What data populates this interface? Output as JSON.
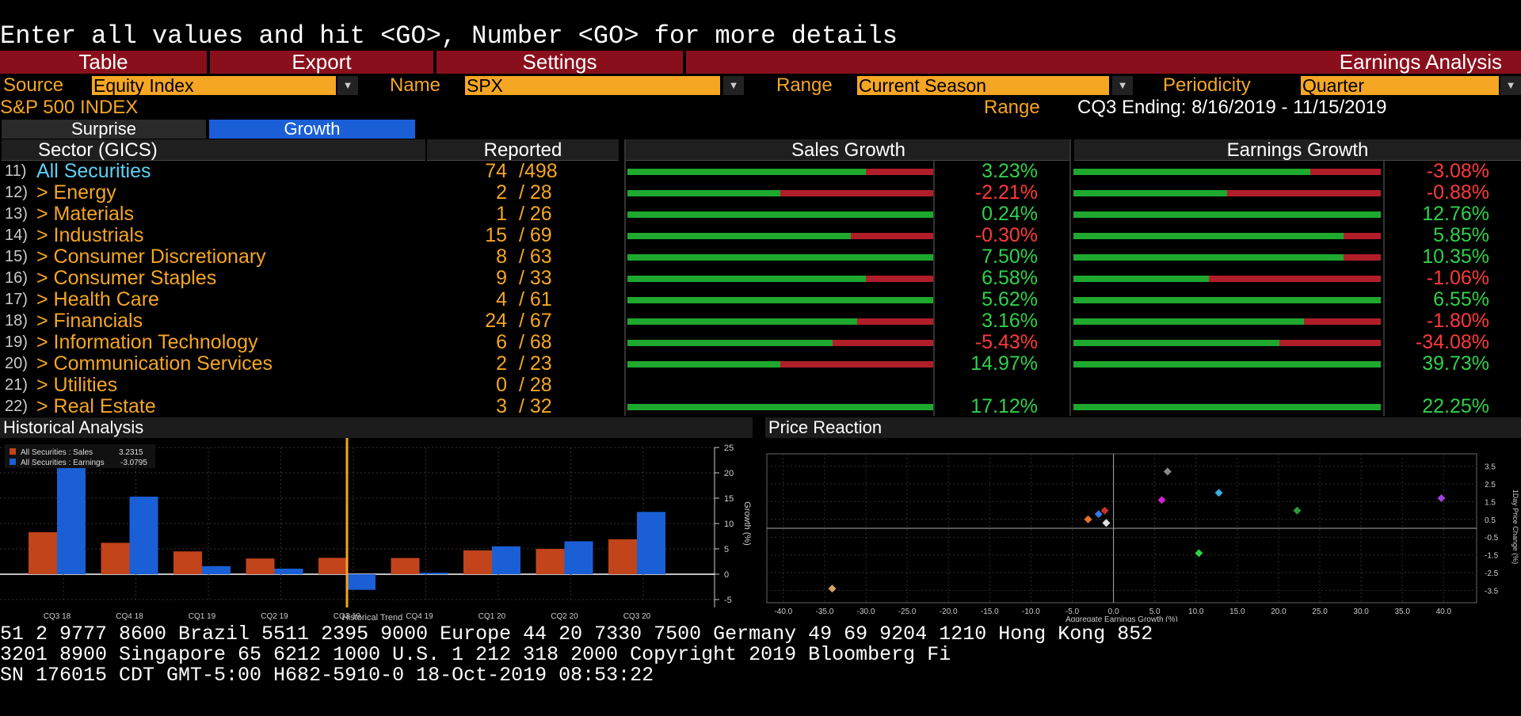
{
  "command_line": "Enter all values and hit <GO>, Number <GO> for more details",
  "menu": {
    "table": "Table",
    "export": "Export",
    "settings": "Settings",
    "title": "Earnings Analysis"
  },
  "params": {
    "source_label": "Source",
    "source_value": "Equity Index",
    "name_label": "Name",
    "name_value": "SPX",
    "range_label": "Range",
    "range_value": "Current Season",
    "periodicity_label": "Periodicity",
    "periodicity_value": "Quarter"
  },
  "info": {
    "index_name": "S&P 500 INDEX",
    "range_label": "Range",
    "range_text": "CQ3 Ending: 8/16/2019 - 11/15/2019"
  },
  "tabs": {
    "surprise": "Surprise",
    "growth": "Growth"
  },
  "table": {
    "headers": {
      "sector": "Sector (GICS)",
      "reported": "Reported",
      "sales_growth": "Sales Growth",
      "earnings_growth": "Earnings Growth"
    },
    "rows": [
      {
        "num": "11)",
        "sector": "All Securities",
        "reported": "74",
        "total": "/498",
        "sales": "3.23%",
        "sales_v": 3.23,
        "sales_frac": 0.78,
        "earn": "-3.08%",
        "earn_v": -3.08,
        "earn_frac": 0.77,
        "all": true
      },
      {
        "num": "12)",
        "sector": "> Energy",
        "reported": "2",
        "total": "/ 28",
        "sales": "-2.21%",
        "sales_v": -2.21,
        "sales_frac": 0.5,
        "earn": "-0.88%",
        "earn_v": -0.88,
        "earn_frac": 0.5
      },
      {
        "num": "13)",
        "sector": "> Materials",
        "reported": "1",
        "total": "/ 26",
        "sales": "0.24%",
        "sales_v": 0.24,
        "sales_frac": 1.0,
        "earn": "12.76%",
        "earn_v": 12.76,
        "earn_frac": 1.0
      },
      {
        "num": "14)",
        "sector": "> Industrials",
        "reported": "15",
        "total": "/ 69",
        "sales": "-0.30%",
        "sales_v": -0.3,
        "sales_frac": 0.73,
        "earn": "5.85%",
        "earn_v": 5.85,
        "earn_frac": 0.88
      },
      {
        "num": "15)",
        "sector": "> Consumer Discretionary",
        "reported": "8",
        "total": "/ 63",
        "sales": "7.50%",
        "sales_v": 7.5,
        "sales_frac": 1.0,
        "earn": "10.35%",
        "earn_v": 10.35,
        "earn_frac": 0.88
      },
      {
        "num": "16)",
        "sector": "> Consumer Staples",
        "reported": "9",
        "total": "/ 33",
        "sales": "6.58%",
        "sales_v": 6.58,
        "sales_frac": 0.78,
        "earn": "-1.06%",
        "earn_v": -1.06,
        "earn_frac": 0.44
      },
      {
        "num": "17)",
        "sector": "> Health Care",
        "reported": "4",
        "total": "/ 61",
        "sales": "5.62%",
        "sales_v": 5.62,
        "sales_frac": 1.0,
        "earn": "6.55%",
        "earn_v": 6.55,
        "earn_frac": 1.0
      },
      {
        "num": "18)",
        "sector": "> Financials",
        "reported": "24",
        "total": "/ 67",
        "sales": "3.16%",
        "sales_v": 3.16,
        "sales_frac": 0.75,
        "earn": "-1.80%",
        "earn_v": -1.8,
        "earn_frac": 0.75
      },
      {
        "num": "19)",
        "sector": "> Information Technology",
        "reported": "6",
        "total": "/ 68",
        "sales": "-5.43%",
        "sales_v": -5.43,
        "sales_frac": 0.67,
        "earn": "-34.08%",
        "earn_v": -34.08,
        "earn_frac": 0.67
      },
      {
        "num": "20)",
        "sector": "> Communication Services",
        "reported": "2",
        "total": "/ 23",
        "sales": "14.97%",
        "sales_v": 14.97,
        "sales_frac": 0.5,
        "earn": "39.73%",
        "earn_v": 39.73,
        "earn_frac": 1.0
      },
      {
        "num": "21)",
        "sector": "> Utilities",
        "reported": "0",
        "total": "/ 28",
        "sales": "",
        "sales_v": null,
        "sales_frac": 0,
        "earn": "",
        "earn_v": null,
        "earn_frac": 0
      },
      {
        "num": "22)",
        "sector": "> Real Estate",
        "reported": "3",
        "total": "/ 32",
        "sales": "17.12%",
        "sales_v": 17.12,
        "sales_frac": 1.0,
        "earn": "22.25%",
        "earn_v": 22.25,
        "earn_frac": 1.0
      }
    ]
  },
  "historical": {
    "title": "Historical Analysis",
    "legend_sales": "All Securities : Sales",
    "legend_sales_value": "3.2315",
    "legend_earnings": "All Securities : Earnings",
    "legend_earnings_value": "-3.0795",
    "xlabel": "Historical Trend",
    "ylabel": "Growth (%)"
  },
  "price": {
    "title": "Price Reaction",
    "xlabel": "Aggregate Earnings Growth (%)",
    "ylabel": "1Day Price Change (%)"
  },
  "chart_data": [
    {
      "type": "bar",
      "title": "Historical Analysis",
      "categories": [
        "CQ3 18",
        "CQ4 18",
        "CQ1 19",
        "CQ2 19",
        "CQ3 19",
        "CQ4 19",
        "CQ1 20",
        "CQ2 20",
        "CQ3 20"
      ],
      "series": [
        {
          "name": "All Securities : Sales",
          "color": "#c1441b",
          "values": [
            8.3,
            6.2,
            4.5,
            3.1,
            3.23,
            3.2,
            4.7,
            5.0,
            6.9
          ]
        },
        {
          "name": "All Securities : Earnings",
          "color": "#1a5fd6",
          "values": [
            24.5,
            15.3,
            1.6,
            1.1,
            -3.08,
            0.3,
            5.5,
            6.5,
            12.3
          ]
        }
      ],
      "xlabel": "Historical Trend",
      "ylabel": "Growth (%)",
      "ylim": [
        -5,
        25
      ],
      "yticks": [
        -5,
        0,
        5,
        10,
        15,
        20,
        25
      ],
      "marker_category": "CQ3 19",
      "grid": true,
      "legend": "top-left"
    },
    {
      "type": "scatter",
      "title": "Price Reaction",
      "xlabel": "Aggregate Earnings Growth (%)",
      "ylabel": "1Day Price Change (%)",
      "xlim": [
        -42,
        44
      ],
      "ylim": [
        -4.2,
        4.2
      ],
      "xticks": [
        -40,
        -35,
        -30,
        -25,
        -20,
        -15,
        -10,
        -5,
        0,
        5,
        10,
        15,
        20,
        25,
        30,
        35,
        40
      ],
      "yticks": [
        -3.5,
        -2.5,
        -1.5,
        -0.5,
        0.5,
        1.5,
        2.5,
        3.5
      ],
      "points": [
        {
          "x": -34.08,
          "y": -3.4,
          "color": "#d4a56a"
        },
        {
          "x": -3.08,
          "y": 0.5,
          "color": "#e8702a"
        },
        {
          "x": -1.8,
          "y": 0.8,
          "color": "#3a78e0"
        },
        {
          "x": -1.06,
          "y": 1.0,
          "color": "#c8312a"
        },
        {
          "x": -0.88,
          "y": 0.3,
          "color": "#e0e0e0"
        },
        {
          "x": 5.85,
          "y": 1.6,
          "color": "#d020d0"
        },
        {
          "x": 6.55,
          "y": 3.2,
          "color": "#888888"
        },
        {
          "x": 10.35,
          "y": -1.4,
          "color": "#2fd14a"
        },
        {
          "x": 12.76,
          "y": 2.0,
          "color": "#3ab0e0"
        },
        {
          "x": 22.25,
          "y": 1.0,
          "color": "#2a9a3a"
        },
        {
          "x": 39.73,
          "y": 1.7,
          "color": "#a040e0"
        }
      ],
      "grid": true
    }
  ],
  "ticker": {
    "line1": "51 2 9777 8600 Brazil 5511 2395 9000 Europe 44 20 7330 7500 Germany 49 69 9204 1210 Hong Kong 852",
    "line2": " 3201 8900       Singapore 65 6212 1000       U.S. 1 212 318 2000       Copyright 2019 Bloomberg Fi",
    "line3": "                                        SN 176015 CDT  GMT-5:00 H682-5910-0 18-Oct-2019 08:53:22"
  },
  "colors": {
    "amber": "#f5a623",
    "menu_red": "#8a0f1c",
    "positive": "#2fd14a",
    "negative": "#ff3a3a",
    "bar_green": "#1ea82e",
    "bar_red": "#b01e2a",
    "tab_active": "#1a5fd6"
  }
}
